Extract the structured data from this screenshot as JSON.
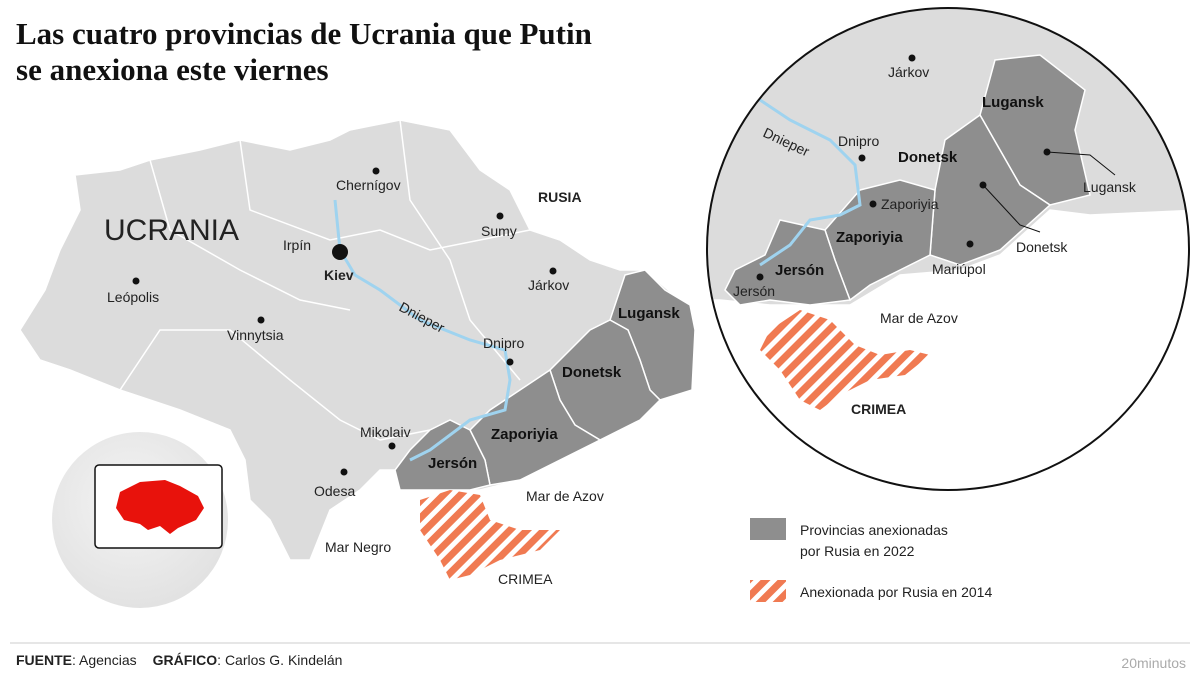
{
  "header": {
    "title_lines": [
      "Las cuatro provincias de Ucrania que Putin",
      "se anexiona este viernes"
    ]
  },
  "map": {
    "countries": [
      "UCRANIA",
      "RUSIA"
    ],
    "cities": [
      "Chernígov",
      "Irpín",
      "Kiev",
      "Sumy",
      "Leópolis",
      "Járkov",
      "Vinnytsia",
      "Dnipro",
      "Mikolaiv",
      "Odesa"
    ],
    "provinces": [
      "Lugansk",
      "Donetsk",
      "Zaporiyia",
      "Jersón"
    ],
    "water": [
      "Dnieper",
      "Mar de Azov",
      "Mar Negro"
    ],
    "crimea": "CRIMEA"
  },
  "inset": {
    "cities": [
      "Járkov",
      "Dnipro",
      "Zaporiyia",
      "Lugansk",
      "Donetsk",
      "Mariúpol",
      "Jersón"
    ],
    "provinces": [
      "Lugansk",
      "Donetsk",
      "Zaporiyia",
      "Jersón"
    ],
    "water": [
      "Dnieper",
      "Mar de Azov"
    ],
    "crimea": "CRIMEA"
  },
  "legend": {
    "items": [
      {
        "label_lines": [
          "Provincias anexionadas",
          "por Rusia en 2022"
        ]
      },
      {
        "label_lines": [
          "Anexionada por Rusia en 2014"
        ]
      }
    ]
  },
  "footer": {
    "source_label": "FUENTE",
    "source_text": ": Agencias",
    "credit_label": "GRÁFICO",
    "credit_text": ": Carlos G. Kindelán",
    "logo": "20minutos"
  }
}
